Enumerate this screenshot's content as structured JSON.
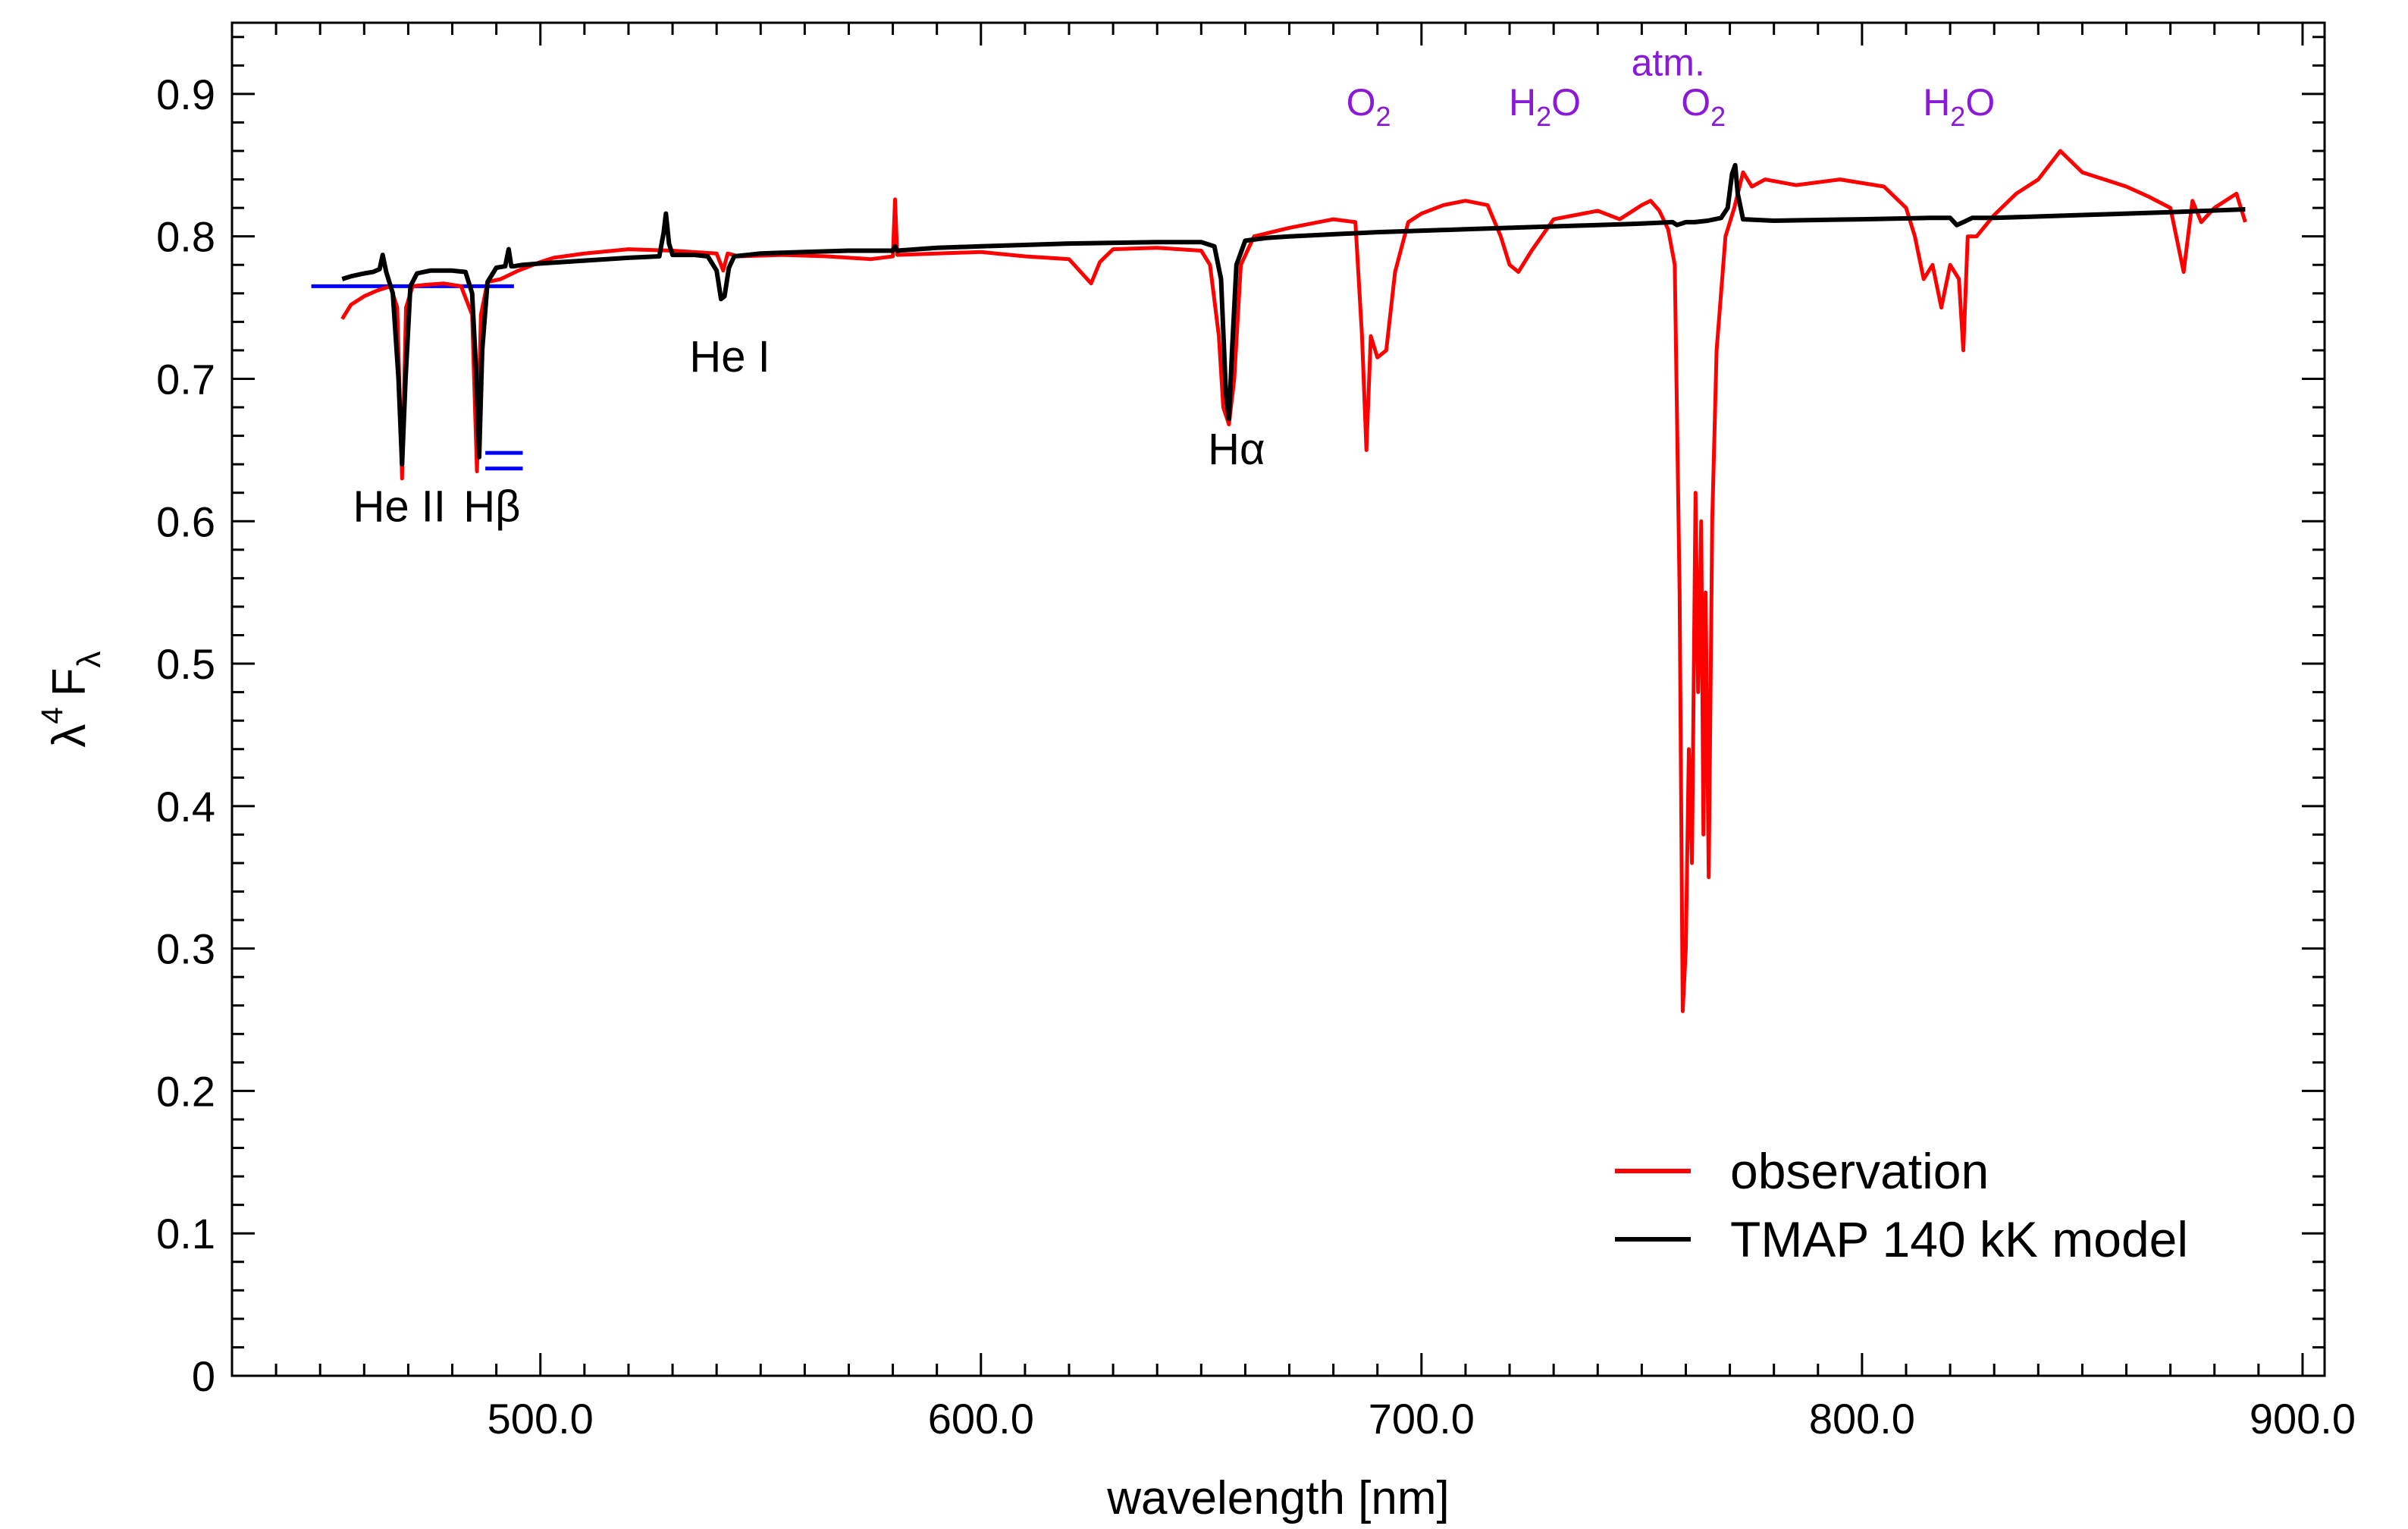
{
  "chart_data": {
    "type": "line",
    "title": "",
    "xlabel": "wavelength [nm]",
    "ylabel": "λ⁴ F_λ",
    "ylabel_parts": {
      "lambda": "λ",
      "power": "4",
      "flux": "F",
      "subscript": "λ"
    },
    "xlim": [
      430,
      905
    ],
    "ylim": [
      0,
      0.95
    ],
    "x_ticks": [
      500,
      600,
      700,
      800,
      900
    ],
    "x_tick_labels": [
      "500.0",
      "600.0",
      "700.0",
      "800.0",
      "900.0"
    ],
    "y_ticks": [
      0,
      0.1,
      0.2,
      0.3,
      0.4,
      0.5,
      0.6,
      0.7,
      0.8,
      0.9
    ],
    "y_tick_labels": [
      "0",
      "0.1",
      "0.2",
      "0.3",
      "0.4",
      "0.5",
      "0.6",
      "0.7",
      "0.8",
      "0.9"
    ],
    "series": [
      {
        "name": "observation",
        "color": "#ff0000",
        "x": [
          455,
          457,
          460,
          463,
          466,
          467.5,
          468.6,
          469.5,
          471,
          474,
          478,
          482,
          484.5,
          485.6,
          486.5,
          488,
          491,
          495,
          500,
          503,
          510,
          520,
          530,
          540,
          541.5,
          542.5,
          545,
          555,
          565,
          575,
          580,
          580.5,
          581,
          590,
          600,
          610,
          620,
          625,
          627,
          630,
          640,
          650,
          652,
          654,
          655,
          656.3,
          657.5,
          659,
          662,
          670,
          680,
          685,
          686.5,
          687.5,
          688.5,
          690,
          692,
          694,
          697,
          700,
          705,
          710,
          715,
          718,
          720,
          722,
          725,
          730,
          735,
          740,
          745,
          750,
          752,
          754,
          756,
          757.5,
          758.6,
          759.3,
          760,
          760.7,
          761.4,
          762.2,
          762.8,
          763.5,
          764,
          764.5,
          765.2,
          766,
          767,
          769,
          771,
          773,
          775,
          778,
          785,
          795,
          805,
          810,
          812,
          814,
          816,
          818,
          820,
          822,
          823,
          824,
          826,
          830,
          835,
          840,
          845,
          850,
          855,
          860,
          865,
          870,
          873,
          875,
          877,
          880,
          885,
          887
        ],
        "y": [
          0.742,
          0.752,
          0.758,
          0.762,
          0.765,
          0.75,
          0.63,
          0.75,
          0.765,
          0.766,
          0.767,
          0.765,
          0.745,
          0.635,
          0.745,
          0.768,
          0.77,
          0.776,
          0.782,
          0.785,
          0.788,
          0.791,
          0.79,
          0.788,
          0.776,
          0.788,
          0.786,
          0.787,
          0.786,
          0.784,
          0.786,
          0.826,
          0.787,
          0.788,
          0.789,
          0.786,
          0.784,
          0.767,
          0.782,
          0.791,
          0.792,
          0.79,
          0.78,
          0.73,
          0.68,
          0.668,
          0.7,
          0.78,
          0.8,
          0.806,
          0.812,
          0.81,
          0.73,
          0.65,
          0.73,
          0.715,
          0.72,
          0.775,
          0.81,
          0.816,
          0.822,
          0.825,
          0.822,
          0.8,
          0.78,
          0.775,
          0.79,
          0.812,
          0.815,
          0.818,
          0.812,
          0.822,
          0.825,
          0.818,
          0.805,
          0.78,
          0.55,
          0.256,
          0.3,
          0.44,
          0.36,
          0.62,
          0.48,
          0.6,
          0.38,
          0.55,
          0.35,
          0.6,
          0.72,
          0.8,
          0.82,
          0.845,
          0.835,
          0.84,
          0.836,
          0.84,
          0.835,
          0.82,
          0.8,
          0.77,
          0.78,
          0.75,
          0.78,
          0.77,
          0.72,
          0.8,
          0.8,
          0.815,
          0.83,
          0.84,
          0.86,
          0.845,
          0.84,
          0.835,
          0.828,
          0.82,
          0.775,
          0.825,
          0.81,
          0.82,
          0.83,
          0.81
        ]
      },
      {
        "name": "TMAP 140 kK model",
        "color": "#000000",
        "x": [
          455,
          457,
          460,
          462,
          463.5,
          464.2,
          465,
          466.5,
          467.8,
          468.6,
          469.4,
          470.5,
          472,
          475,
          480,
          483,
          484.5,
          485.5,
          486.1,
          486.8,
          488,
          490,
          492,
          492.8,
          493.4,
          494,
          496,
          500,
          510,
          520,
          527,
          528,
          528.5,
          529.2,
          530,
          535,
          538,
          540,
          541,
          541.8,
          542.8,
          544,
          550,
          560,
          570,
          580,
          580.5,
          581,
          590,
          600,
          620,
          640,
          650,
          653,
          654.5,
          655.6,
          656.3,
          657,
          658,
          660,
          665,
          670,
          690,
          710,
          730,
          740,
          750,
          757,
          758,
          759,
          760,
          762,
          765,
          768,
          769.5,
          770.5,
          771.2,
          771.8,
          773,
          780,
          800,
          815,
          820,
          821.5,
          823,
          825,
          830,
          850,
          870,
          887
        ],
        "y": [
          0.77,
          0.772,
          0.774,
          0.775,
          0.777,
          0.787,
          0.775,
          0.76,
          0.7,
          0.64,
          0.7,
          0.765,
          0.774,
          0.776,
          0.776,
          0.775,
          0.76,
          0.7,
          0.645,
          0.72,
          0.768,
          0.778,
          0.779,
          0.791,
          0.779,
          0.779,
          0.78,
          0.781,
          0.783,
          0.785,
          0.786,
          0.803,
          0.816,
          0.795,
          0.787,
          0.787,
          0.786,
          0.776,
          0.756,
          0.758,
          0.778,
          0.786,
          0.788,
          0.789,
          0.79,
          0.79,
          0.793,
          0.79,
          0.792,
          0.793,
          0.795,
          0.796,
          0.796,
          0.793,
          0.77,
          0.69,
          0.672,
          0.72,
          0.78,
          0.797,
          0.799,
          0.8,
          0.803,
          0.805,
          0.807,
          0.808,
          0.809,
          0.81,
          0.808,
          0.809,
          0.81,
          0.81,
          0.811,
          0.813,
          0.82,
          0.844,
          0.85,
          0.83,
          0.812,
          0.811,
          0.812,
          0.813,
          0.813,
          0.808,
          0.81,
          0.813,
          0.813,
          0.815,
          0.817,
          0.819
        ]
      }
    ],
    "reference_lines": [
      {
        "color": "#0000ff",
        "x": [
          448,
          494
        ],
        "y": 0.765
      },
      {
        "color": "#0000ff",
        "x": [
          487.5,
          496
        ],
        "y": 0.648
      },
      {
        "color": "#0000ff",
        "x": [
          487.5,
          496
        ],
        "y": 0.637
      }
    ],
    "annotations": [
      {
        "text": "He II",
        "x": 468,
        "y": 0.6,
        "color": "#000000"
      },
      {
        "text": "Hβ",
        "x": 489,
        "y": 0.6,
        "color": "#000000"
      },
      {
        "text": "He I",
        "x": 543,
        "y": 0.705,
        "color": "#000000"
      },
      {
        "text": "Hα",
        "x": 658,
        "y": 0.64,
        "color": "#000000"
      }
    ],
    "telluric_annotations": [
      {
        "base": "atm.",
        "sub": "",
        "tail": "",
        "x": 756,
        "y": 0.913
      },
      {
        "base": "O",
        "sub": "2",
        "tail": "",
        "x": 688,
        "y": 0.885
      },
      {
        "base": "H",
        "sub": "2",
        "tail": "O",
        "x": 728,
        "y": 0.885
      },
      {
        "base": "O",
        "sub": "2",
        "tail": "",
        "x": 764,
        "y": 0.885
      },
      {
        "base": "H",
        "sub": "2",
        "tail": "O",
        "x": 822,
        "y": 0.885
      }
    ],
    "legend": {
      "position": "bottom-right",
      "entries": [
        {
          "label": "observation",
          "color": "#ff0000"
        },
        {
          "label": "TMAP 140 kK model",
          "color": "#000000"
        }
      ]
    }
  }
}
